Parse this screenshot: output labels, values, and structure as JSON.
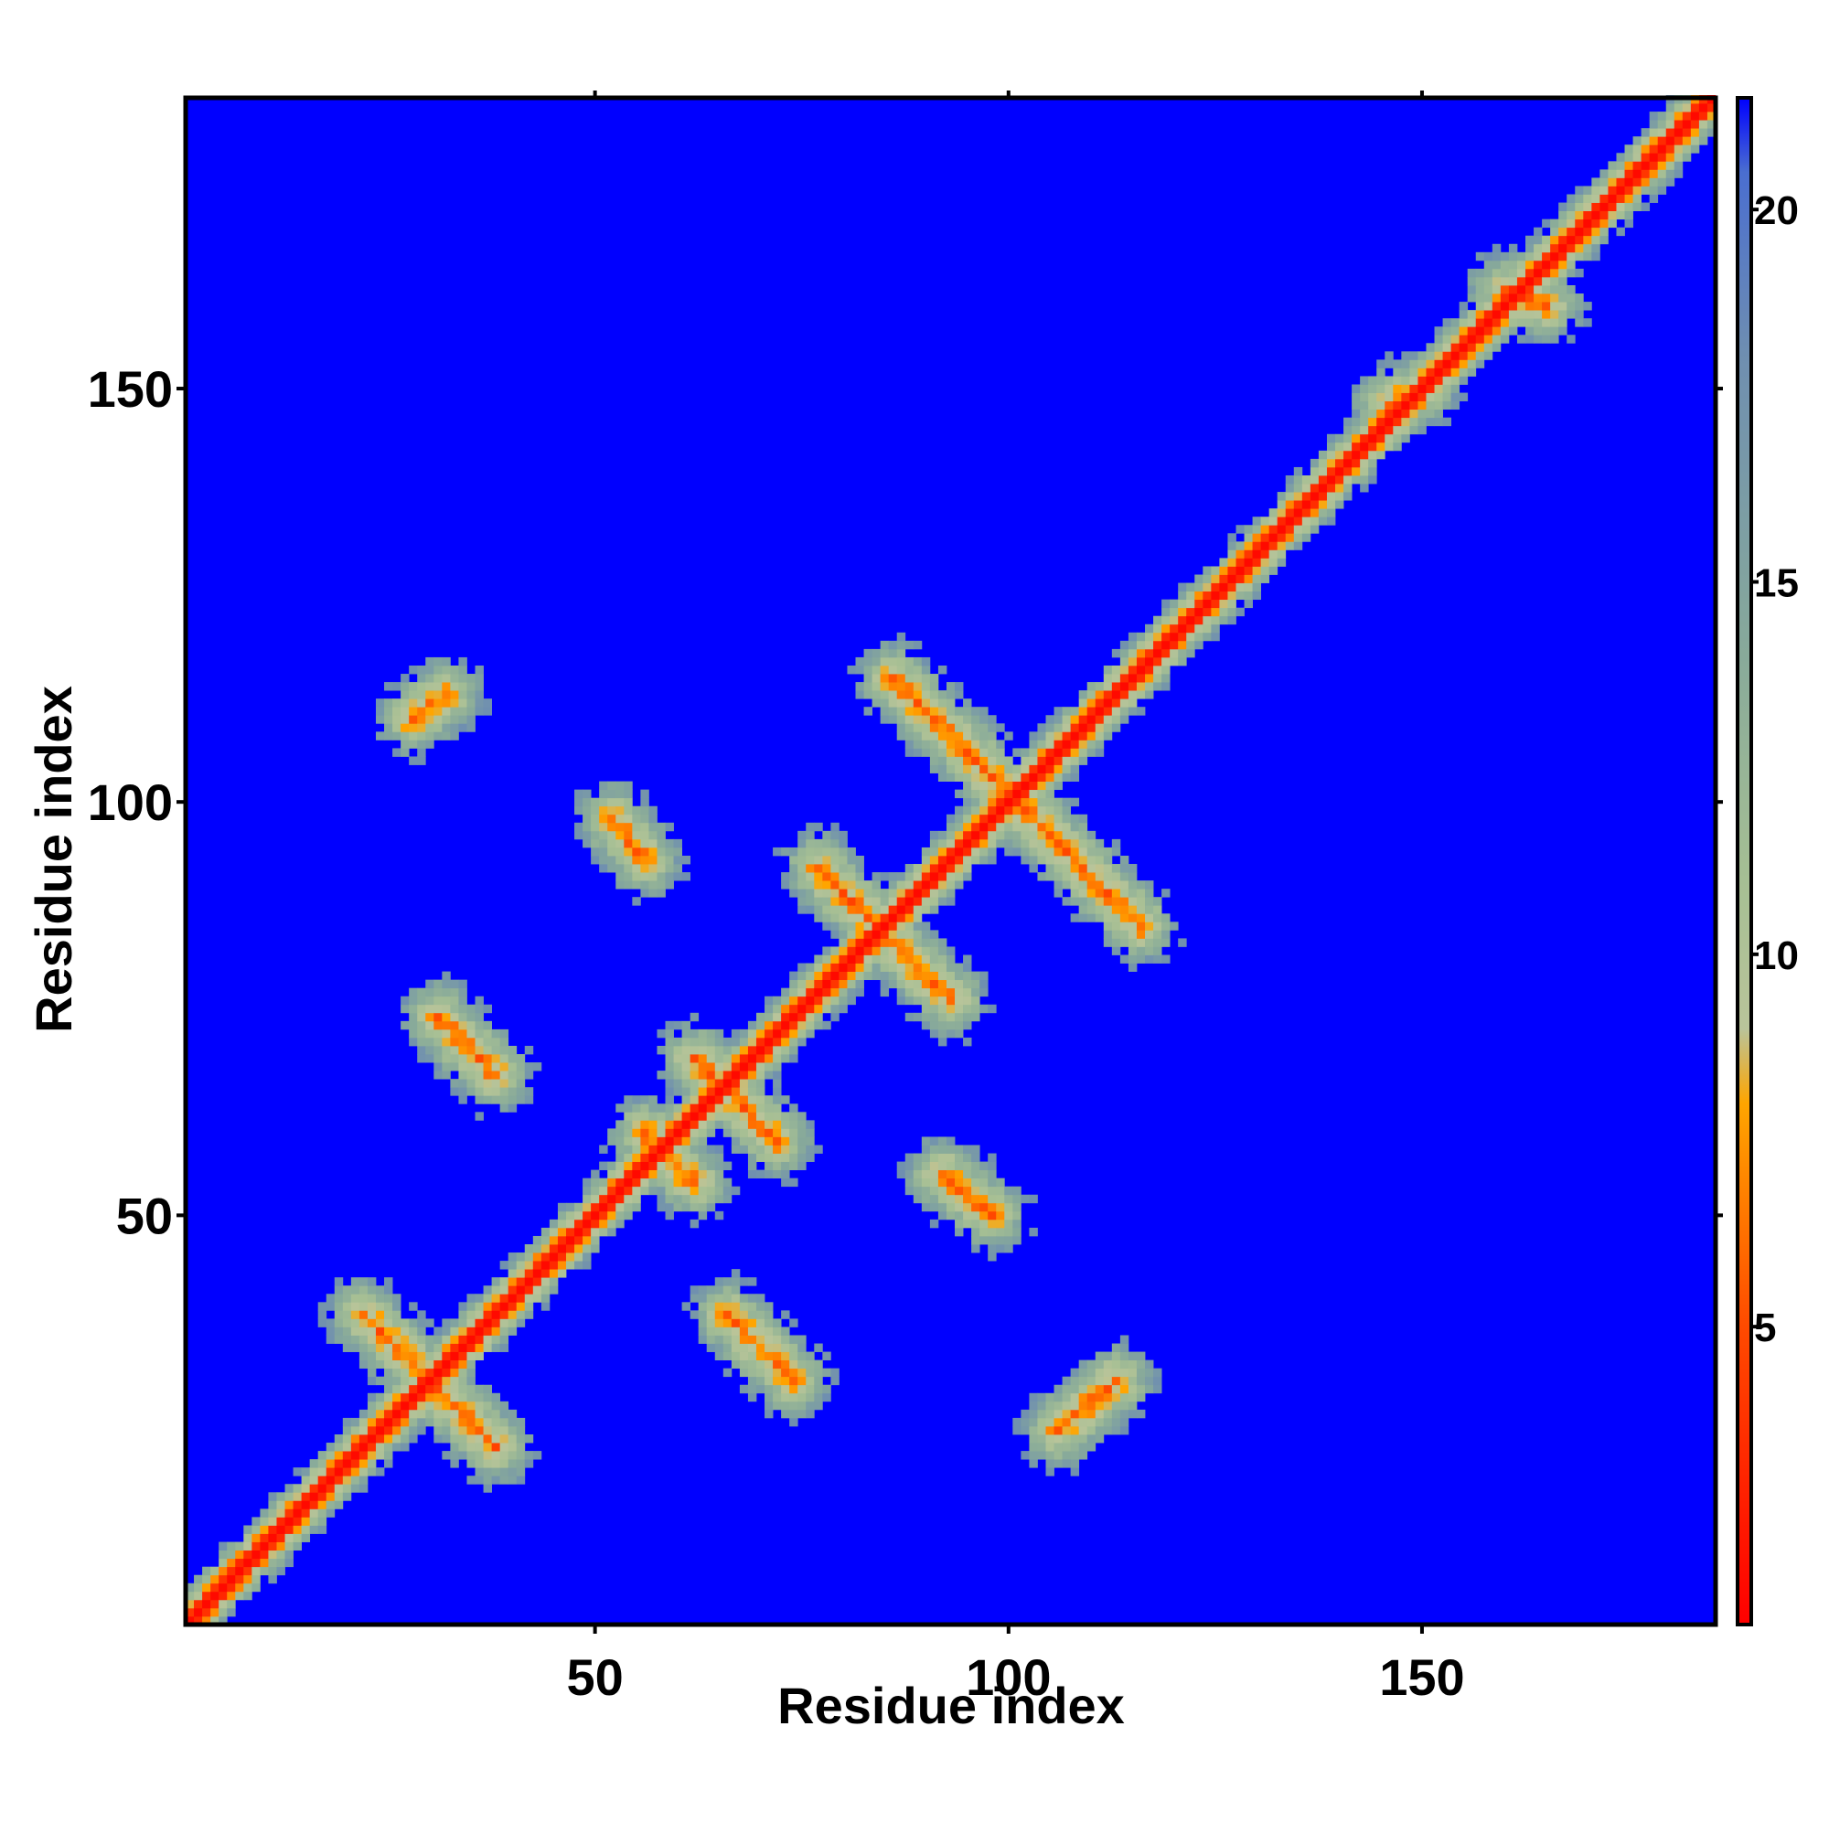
{
  "chart_data": {
    "type": "heatmap",
    "title": "",
    "xlabel": "Residue index",
    "ylabel": "Residue index",
    "xlim": [
      1,
      185
    ],
    "ylim": [
      1,
      185
    ],
    "x_ticks": [
      50,
      100,
      150
    ],
    "y_ticks": [
      50,
      100,
      150
    ],
    "colorbar": {
      "range": [
        1,
        21.5
      ],
      "ticks": [
        5,
        10,
        15,
        20
      ],
      "stops": [
        {
          "value": 1,
          "color": "#ff0000"
        },
        {
          "value": 5,
          "color": "#ff4a00"
        },
        {
          "value": 8,
          "color": "#ffa500"
        },
        {
          "value": 9,
          "color": "#b9c49a"
        },
        {
          "value": 11,
          "color": "#a6bf94"
        },
        {
          "value": 14,
          "color": "#88aa9a"
        },
        {
          "value": 18,
          "color": "#6f8fb0"
        },
        {
          "value": 20.5,
          "color": "#4a6ed0"
        },
        {
          "value": 21.5,
          "color": "#0000ff"
        }
      ]
    },
    "background_color": "#0000ff",
    "diagonal": {
      "from": 1,
      "to": 185
    },
    "contact_segments": [
      {
        "from": [
          22,
          38
        ],
        "to": [
          38,
          22
        ],
        "kind": "anti-parallel"
      },
      {
        "from": [
          31,
          74
        ],
        "to": [
          38,
          67
        ],
        "kind": "anti-parallel"
      },
      {
        "from": [
          66,
          38
        ],
        "to": [
          74,
          30
        ],
        "kind": "anti-parallel"
      },
      {
        "from": [
          52,
          98
        ],
        "to": [
          56,
          93
        ],
        "kind": "anti-parallel"
      },
      {
        "from": [
          56,
          60
        ],
        "to": [
          62,
          54
        ],
        "kind": "anti-parallel"
      },
      {
        "from": [
          62,
          69
        ],
        "to": [
          72,
          59
        ],
        "kind": "anti-parallel"
      },
      {
        "from": [
          77,
          92
        ],
        "to": [
          93,
          76
        ],
        "kind": "anti-parallel"
      },
      {
        "from": [
          86,
          115
        ],
        "to": [
          116,
          85
        ],
        "kind": "anti-parallel"
      },
      {
        "from": [
          92,
          55
        ],
        "to": [
          98,
          50
        ],
        "kind": "anti-parallel"
      },
      {
        "from": [
          28,
          110
        ],
        "to": [
          32,
          113
        ],
        "kind": "short"
      },
      {
        "from": [
          106,
          24
        ],
        "to": [
          113,
          30
        ],
        "kind": "short"
      },
      {
        "from": [
          146,
          148
        ],
        "to": [
          150,
          150
        ],
        "kind": "near-diagonal"
      },
      {
        "from": [
          160,
          162
        ],
        "to": [
          165,
          160
        ],
        "kind": "near-diagonal"
      }
    ]
  }
}
